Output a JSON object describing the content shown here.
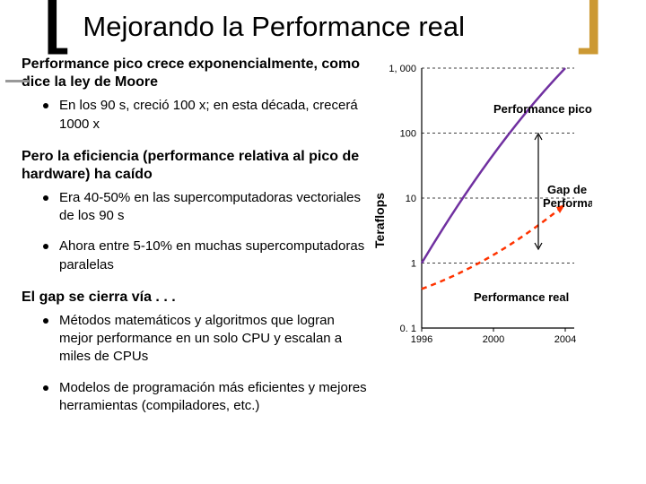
{
  "title": "Mejorando la Performance real",
  "brackets": {
    "left": "[",
    "right": "]",
    "left_color": "#000000",
    "right_color": "#cc9933"
  },
  "sections": [
    {
      "heading": "Performance pico crece exponencialmente, como dice la ley de Moore",
      "bullets": [
        "En los 90 s, creció 100 x; en esta década, crecerá 1000 x"
      ]
    },
    {
      "heading": "Pero la eficiencia (performance relativa al pico de hardware) ha caído",
      "bullets": [
        "Era 40-50% en las supercomputadoras vectoriales de los 90 s",
        "Ahora entre 5-10% en muchas supercomputadoras paralelas"
      ]
    },
    {
      "heading": "El gap se cierra vía . . .",
      "bullets": [
        "Métodos matemáticos y algoritmos que logran mejor performance en un solo CPU y escalan a miles de CPUs",
        "Modelos de programación más eficientes y mejores herramientas (compiladores, etc.)"
      ]
    }
  ],
  "chart": {
    "type": "line",
    "ylabel": "Teraflops",
    "x_ticks": [
      "1996",
      "2000",
      "2004"
    ],
    "y_ticks": [
      "0. 1",
      "1",
      "10",
      "100",
      "1, 000"
    ],
    "annotations": {
      "peak": "Performance pico",
      "gap": "Gap de Performance",
      "real": "Performance real"
    },
    "colors": {
      "background": "#ffffff",
      "axis": "#000000",
      "grid": "#000000",
      "peak_line": "#7030a0",
      "real_line": "#ff3300",
      "text": "#000000"
    },
    "style": {
      "axis_fontsize": 11,
      "label_fontsize": 14,
      "annotation_fontsize": 13,
      "grid_dash": "3,3",
      "real_dash": "6,5",
      "peak_line_width": 2.5,
      "real_line_width": 2.5
    },
    "series": {
      "peak": {
        "x": [
          1996,
          2000,
          2004
        ],
        "y": [
          1,
          70,
          1000
        ]
      },
      "real": {
        "x": [
          1996,
          2000,
          2004
        ],
        "y": [
          0.4,
          1,
          8
        ]
      }
    },
    "x_range": [
      1996,
      2004.5
    ],
    "y_range_log10": [
      -1,
      3
    ]
  }
}
